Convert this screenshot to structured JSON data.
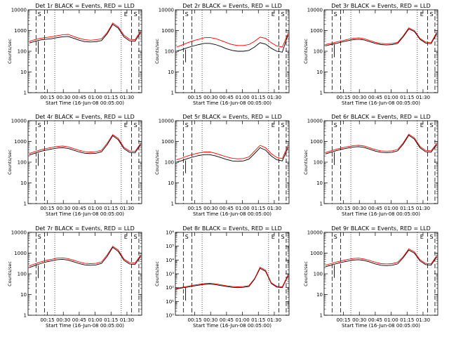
{
  "chart_data": [
    {
      "type": "line",
      "title": "Det 1r BLACK = Events, RED = LLD",
      "xlabel": "Start Time (16-Jun-08 00:05:00)",
      "ylabel": "Counts/sec",
      "log_y": true,
      "ylim": [
        1,
        10000
      ],
      "y_ticks": [
        "1",
        "10",
        "100",
        "1000",
        "10000"
      ],
      "x_ticks": [
        "00:15",
        "00:30",
        "00:45",
        "01:00",
        "01:15",
        "01:30"
      ],
      "flags": [
        "S",
        "E",
        "S"
      ],
      "color_events": "#000000",
      "color_lld": "#ff0000",
      "series": [
        {
          "name": "Events",
          "values": [
            250,
            300,
            350,
            380,
            400,
            450,
            500,
            520,
            420,
            340,
            290,
            280,
            290,
            330,
            700,
            2000,
            1300,
            500,
            320,
            300,
            800
          ]
        },
        {
          "name": "LLD",
          "values": [
            300,
            360,
            420,
            460,
            500,
            560,
            620,
            650,
            520,
            420,
            360,
            340,
            360,
            400,
            800,
            2300,
            1500,
            600,
            380,
            360,
            950
          ]
        }
      ]
    },
    {
      "type": "line",
      "title": "Det 2r BLACK = Events, RED = LLD",
      "xlabel": "Start Time (16-Jun-08 00:05:00)",
      "ylabel": "Counts/sec",
      "log_y": true,
      "ylim": [
        1,
        10000
      ],
      "y_ticks": [
        "1",
        "10",
        "100",
        "1000",
        "10000"
      ],
      "x_ticks": [
        "00:15",
        "00:30",
        "00:45",
        "01:00",
        "01:15",
        "01:30"
      ],
      "flags": [
        "S",
        "E",
        "S"
      ],
      "color_events": "#000000",
      "color_lld": "#ff0000",
      "series": [
        {
          "name": "Events",
          "values": [
            100,
            120,
            150,
            180,
            210,
            240,
            240,
            210,
            170,
            130,
            110,
            100,
            100,
            110,
            160,
            260,
            220,
            140,
            100,
            90,
            600
          ]
        },
        {
          "name": "LLD",
          "values": [
            160,
            200,
            260,
            320,
            380,
            450,
            460,
            410,
            330,
            260,
            210,
            190,
            190,
            210,
            300,
            480,
            420,
            260,
            180,
            160,
            700
          ]
        }
      ]
    },
    {
      "type": "line",
      "title": "Det 3r BLACK = Events, RED = LLD",
      "xlabel": "Start Time (16-Jun-08 00:05:00)",
      "ylabel": "Counts/sec",
      "log_y": true,
      "ylim": [
        1,
        10000
      ],
      "y_ticks": [
        "1",
        "10",
        "100",
        "1000",
        "10000"
      ],
      "x_ticks": [
        "00:15",
        "00:30",
        "00:45",
        "01:00",
        "01:15",
        "01:30"
      ],
      "flags": [
        "S",
        "E",
        "S"
      ],
      "color_events": "#000000",
      "color_lld": "#ff0000",
      "series": [
        {
          "name": "Events",
          "values": [
            180,
            210,
            240,
            280,
            320,
            360,
            380,
            350,
            290,
            240,
            210,
            200,
            210,
            240,
            500,
            1200,
            900,
            380,
            250,
            230,
            700
          ]
        },
        {
          "name": "LLD",
          "values": [
            210,
            240,
            280,
            320,
            370,
            420,
            440,
            400,
            330,
            270,
            240,
            230,
            240,
            270,
            560,
            1350,
            1000,
            420,
            280,
            260,
            800
          ]
        }
      ]
    },
    {
      "type": "line",
      "title": "Det 4r BLACK = Events, RED = LLD",
      "xlabel": "Start Time (16-Jun-08 00:05:00)",
      "ylabel": "Counts/sec",
      "log_y": true,
      "ylim": [
        1,
        10000
      ],
      "y_ticks": [
        "1",
        "10",
        "100",
        "1000",
        "10000"
      ],
      "x_ticks": [
        "00:15",
        "00:30",
        "00:45",
        "01:00",
        "01:15",
        "01:30"
      ],
      "flags": [
        "S",
        "E",
        "S"
      ],
      "color_events": "#000000",
      "color_lld": "#ff0000",
      "series": [
        {
          "name": "Events",
          "values": [
            220,
            270,
            330,
            380,
            430,
            480,
            500,
            460,
            380,
            310,
            270,
            260,
            270,
            320,
            700,
            1900,
            1200,
            450,
            300,
            280,
            700
          ]
        },
        {
          "name": "LLD",
          "values": [
            260,
            320,
            390,
            450,
            510,
            570,
            600,
            550,
            450,
            370,
            320,
            310,
            320,
            380,
            820,
            2150,
            1400,
            520,
            350,
            330,
            800
          ]
        }
      ]
    },
    {
      "type": "line",
      "title": "Det 5r BLACK = Events, RED = LLD",
      "xlabel": "Start Time (16-Jun-08 00:05:00)",
      "ylabel": "Counts/sec",
      "log_y": true,
      "ylim": [
        1,
        10000
      ],
      "y_ticks": [
        "1",
        "10",
        "100",
        "1000",
        "10000"
      ],
      "x_ticks": [
        "00:15",
        "00:30",
        "00:45",
        "01:00",
        "01:15",
        "01:30"
      ],
      "flags": [
        "S",
        "E",
        "S"
      ],
      "color_events": "#000000",
      "color_lld": "#ff0000",
      "series": [
        {
          "name": "Events",
          "values": [
            100,
            120,
            150,
            180,
            210,
            230,
            230,
            200,
            165,
            135,
            115,
            110,
            115,
            140,
            260,
            500,
            380,
            200,
            130,
            115,
            500
          ]
        },
        {
          "name": "LLD",
          "values": [
            130,
            160,
            200,
            240,
            280,
            310,
            310,
            270,
            220,
            180,
            155,
            145,
            150,
            180,
            340,
            650,
            500,
            260,
            170,
            150,
            650
          ]
        }
      ]
    },
    {
      "type": "line",
      "title": "Det 6r BLACK = Events, RED = LLD",
      "xlabel": "Start Time (16-Jun-08 00:05:00)",
      "ylabel": "Counts/sec",
      "log_y": true,
      "ylim": [
        1,
        10000
      ],
      "y_ticks": [
        "1",
        "10",
        "100",
        "1000",
        "10000"
      ],
      "x_ticks": [
        "00:15",
        "00:30",
        "00:45",
        "01:00",
        "01:15",
        "01:30"
      ],
      "flags": [
        "S",
        "E",
        "S"
      ],
      "color_events": "#000000",
      "color_lld": "#ff0000",
      "series": [
        {
          "name": "Events",
          "values": [
            250,
            300,
            360,
            420,
            480,
            540,
            560,
            510,
            420,
            340,
            300,
            290,
            300,
            350,
            750,
            2000,
            1300,
            500,
            320,
            300,
            700
          ]
        },
        {
          "name": "LLD",
          "values": [
            290,
            350,
            420,
            490,
            560,
            630,
            650,
            600,
            490,
            400,
            350,
            340,
            350,
            410,
            860,
            2250,
            1500,
            580,
            370,
            350,
            800
          ]
        }
      ]
    },
    {
      "type": "line",
      "title": "Det 7r BLACK = Events, RED = LLD",
      "xlabel": "Start Time (16-Jun-08 00:05:00)",
      "ylabel": "Counts/sec",
      "log_y": true,
      "ylim": [
        1,
        10000
      ],
      "y_ticks": [
        "1",
        "10",
        "100",
        "1000",
        "10000"
      ],
      "x_ticks": [
        "00:15",
        "00:30",
        "00:45",
        "01:00",
        "01:15",
        "01:30"
      ],
      "flags": [
        "S",
        "E",
        "S"
      ],
      "color_events": "#000000",
      "color_lld": "#ff0000",
      "series": [
        {
          "name": "Events",
          "values": [
            200,
            250,
            310,
            370,
            420,
            480,
            500,
            460,
            380,
            310,
            270,
            260,
            270,
            320,
            700,
            1900,
            1200,
            450,
            300,
            280,
            700
          ]
        },
        {
          "name": "LLD",
          "values": [
            240,
            300,
            370,
            440,
            500,
            570,
            590,
            540,
            450,
            370,
            320,
            310,
            320,
            380,
            820,
            2150,
            1400,
            520,
            350,
            330,
            800
          ]
        }
      ]
    },
    {
      "type": "line",
      "title": "Det 8r BLACK = Events, RED = LLD",
      "xlabel": "Start Time (16-Jun-08 00:05:00)",
      "ylabel": "Counts/sec",
      "log_y": true,
      "ylim": [
        1,
        1000000
      ],
      "y_ticks": [
        "10⁰",
        "10¹",
        "10²",
        "10³",
        "10⁴",
        "10⁵",
        "10⁶"
      ],
      "x_ticks": [
        "00:15",
        "00:30",
        "00:45",
        "01:00",
        "01:15",
        "01:30"
      ],
      "flags": [
        "S",
        "E",
        "S"
      ],
      "color_events": "#000000",
      "color_lld": "#ff0000",
      "series": [
        {
          "name": "Events",
          "values": [
            80,
            95,
            110,
            130,
            150,
            170,
            180,
            165,
            140,
            120,
            105,
            100,
            105,
            120,
            400,
            2500,
            1500,
            200,
            110,
            100,
            700
          ]
        },
        {
          "name": "LLD",
          "values": [
            90,
            105,
            125,
            150,
            170,
            195,
            205,
            190,
            160,
            135,
            120,
            115,
            120,
            140,
            450,
            3000,
            1800,
            230,
            125,
            115,
            800
          ]
        }
      ]
    },
    {
      "type": "line",
      "title": "Det 9r BLACK = Events, RED = LLD",
      "xlabel": "Start Time (16-Jun-08 00:05:00)",
      "ylabel": "Counts/sec",
      "log_y": true,
      "ylim": [
        1,
        10000
      ],
      "y_ticks": [
        "1",
        "10",
        "100",
        "1000",
        "10000"
      ],
      "x_ticks": [
        "00:15",
        "00:30",
        "00:45",
        "01:00",
        "01:15",
        "01:30"
      ],
      "flags": [
        "S",
        "E",
        "S"
      ],
      "color_events": "#000000",
      "color_lld": "#ff0000",
      "series": [
        {
          "name": "Events",
          "values": [
            220,
            260,
            310,
            360,
            410,
            460,
            480,
            440,
            370,
            300,
            260,
            250,
            260,
            300,
            600,
            1400,
            1000,
            420,
            280,
            260,
            650
          ]
        },
        {
          "name": "LLD",
          "values": [
            260,
            310,
            370,
            430,
            490,
            550,
            570,
            520,
            440,
            360,
            310,
            300,
            310,
            360,
            680,
            1600,
            1150,
            480,
            320,
            300,
            750
          ]
        }
      ]
    }
  ]
}
